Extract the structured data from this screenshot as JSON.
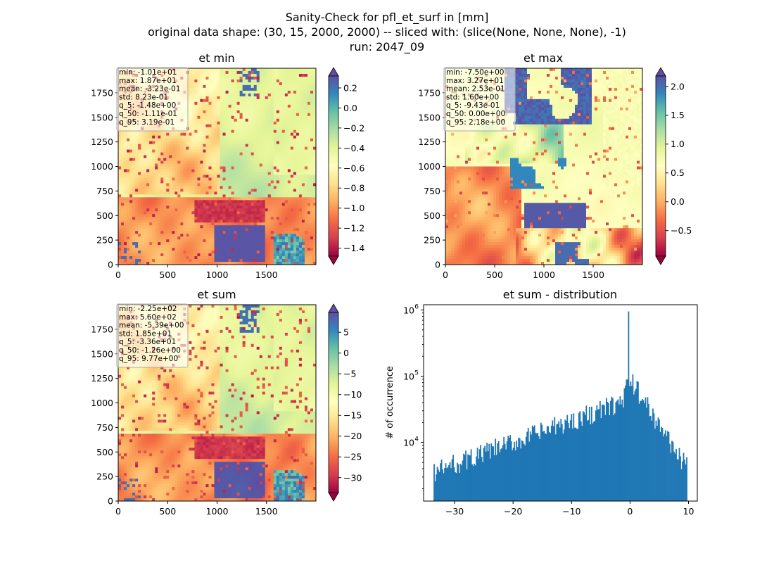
{
  "figure": {
    "title_lines": [
      "Sanity-Check for pfl_et_surf in [mm]",
      "original data shape: (30, 15, 2000, 2000) -- sliced with: (slice(None, None, None), -1)",
      "run: 2047_09"
    ]
  },
  "chart_data": [
    {
      "type": "heatmap",
      "title": "et min",
      "xlim": [
        0,
        2000
      ],
      "ylim": [
        0,
        2000
      ],
      "xticks": [
        0,
        500,
        1000,
        1500
      ],
      "yticks": [
        0,
        250,
        500,
        750,
        1000,
        1250,
        1500,
        1750
      ],
      "colormap": "Spectral",
      "colorbar": {
        "min": -1.48,
        "max": 0.319,
        "ticks": [
          0.2,
          0.0,
          -0.2,
          -0.4,
          -0.6,
          -0.8,
          -1.0,
          -1.2,
          -1.4
        ],
        "tick_labels": [
          "0.2",
          "0.0",
          "−0.2",
          "−0.4",
          "−0.6",
          "−0.8",
          "−1.0",
          "−1.2",
          "−1.4"
        ],
        "extend": "both"
      },
      "stats": [
        "min: -1.01e+01",
        "max: 1.87e+01",
        "mean: -3.23e-01",
        "std: 8.23e-01",
        "q_5: -1.48e+00",
        "q_50: -1.11e-01",
        "q_95: 3.19e-01"
      ]
    },
    {
      "type": "heatmap",
      "title": "et max",
      "xlim": [
        0,
        2000
      ],
      "ylim": [
        0,
        2000
      ],
      "xticks": [
        0,
        500,
        1000,
        1500
      ],
      "yticks": [
        0,
        250,
        500,
        750,
        1000,
        1250,
        1500,
        1750
      ],
      "colormap": "Spectral",
      "colorbar": {
        "min": -0.943,
        "max": 2.18,
        "ticks": [
          2.0,
          1.5,
          1.0,
          0.5,
          0.0,
          -0.5
        ],
        "tick_labels": [
          "2.0",
          "1.5",
          "1.0",
          "0.5",
          "0.0",
          "−0.5"
        ],
        "extend": "both"
      },
      "stats": [
        "min: -7.50e+00",
        "max: 3.27e+01",
        "mean: 2.53e-01",
        "std: 1.60e+00",
        "q_5: -9.43e-01",
        "q_50: 0.00e+00",
        "q_95: 2.18e+00"
      ]
    },
    {
      "type": "heatmap",
      "title": "et sum",
      "xlim": [
        0,
        2000
      ],
      "ylim": [
        0,
        2000
      ],
      "xticks": [
        0,
        500,
        1000,
        1500
      ],
      "yticks": [
        0,
        250,
        500,
        750,
        1000,
        1250,
        1500,
        1750
      ],
      "colormap": "Spectral",
      "colorbar": {
        "min": -33.6,
        "max": 9.77,
        "ticks": [
          5,
          0,
          -5,
          -10,
          -15,
          -20,
          -25,
          -30
        ],
        "tick_labels": [
          "5",
          "0",
          "−5",
          "−10",
          "−15",
          "−20",
          "−25",
          "−30"
        ],
        "extend": "both"
      },
      "stats": [
        "min: -2.25e+02",
        "max: 5.60e+02",
        "mean: -5.39e+00",
        "std: 1.85e+01",
        "q_5: -3.36e+01",
        "q_50: -1.26e+00",
        "q_95: 9.77e+00"
      ]
    },
    {
      "type": "bar",
      "title": "et sum - distribution",
      "ylabel": "# of occurrence",
      "xlabel": "",
      "yscale": "log",
      "xlim": [
        -35.3,
        11.5
      ],
      "ylim": [
        1300,
        1200000
      ],
      "xticks": [
        -30,
        -20,
        -10,
        0,
        10
      ],
      "xtick_labels": [
        "−30",
        "−20",
        "−10",
        "0",
        "10"
      ],
      "yticks": [
        10000,
        100000,
        1000000
      ],
      "ytick_labels": [
        "10^4",
        "10^5",
        "10^6"
      ],
      "color": "#1f77b4",
      "bin_range": [
        -33.6,
        9.77
      ],
      "peak": {
        "x": -0.2,
        "value": 950000
      }
    }
  ]
}
